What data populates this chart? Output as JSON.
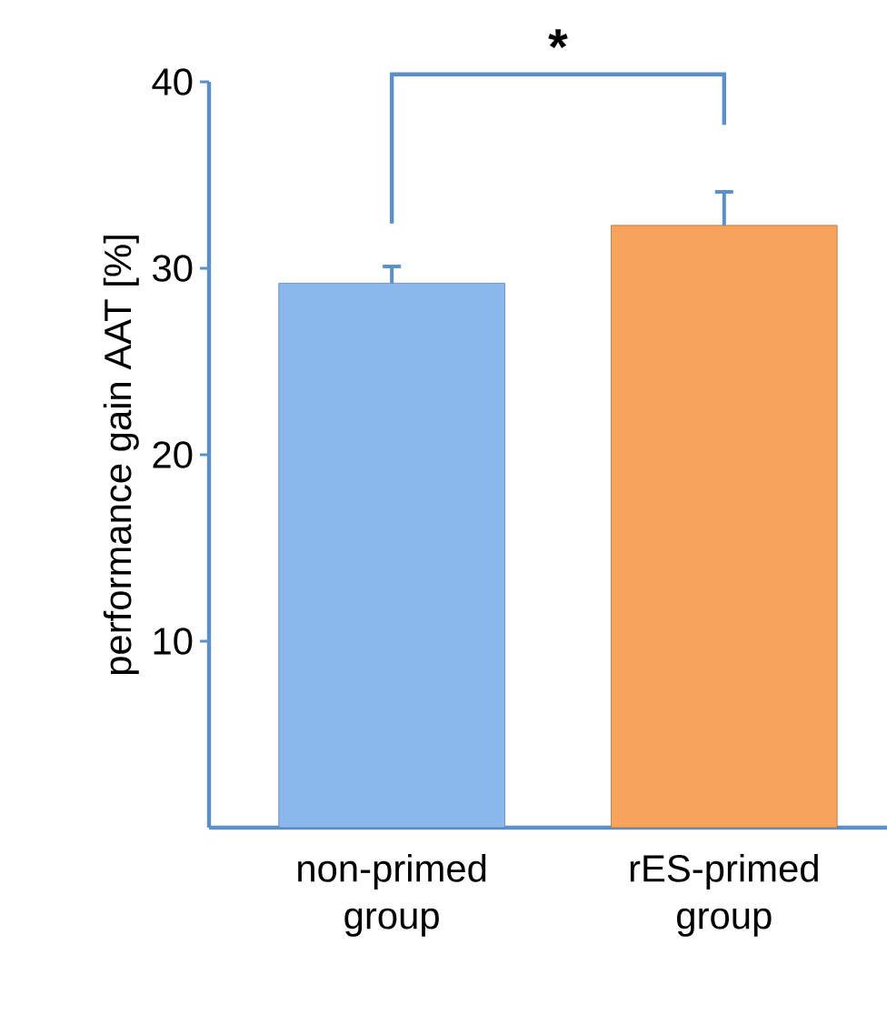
{
  "chart_data": {
    "type": "bar",
    "ylabel": "performance gain AAT [%]",
    "categories": [
      "non-primed group",
      "rES-primed group"
    ],
    "values": [
      29.2,
      32.3
    ],
    "colors": [
      "#8ab8ee",
      "#f7a35c"
    ],
    "errors": [
      0.9,
      1.8
    ],
    "ylim": [
      0,
      40
    ],
    "yticks": [
      10,
      20,
      30,
      40
    ],
    "annotations": [
      "*"
    ],
    "grid": false
  }
}
